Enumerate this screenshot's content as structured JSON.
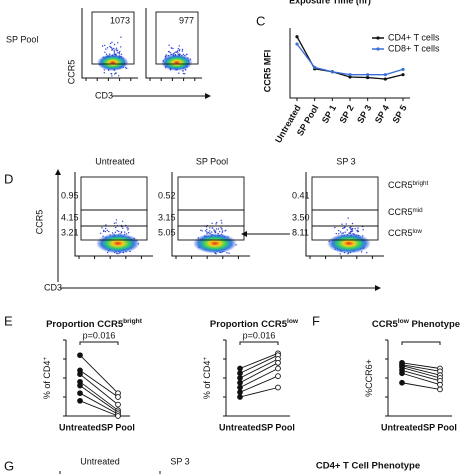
{
  "figure": {
    "exposure_label": "Exposure Time (hr)",
    "panel_letters": {
      "c": "C",
      "d": "D",
      "e": "E",
      "f": "F",
      "g": "G"
    },
    "top_flow": {
      "row_label": "SP Pool",
      "ylabel": "CCR5",
      "xlabel": "CD3",
      "gates": [
        "1073",
        "977"
      ]
    },
    "d_flow": {
      "titles": [
        "Untreated",
        "SP Pool",
        "SP 3"
      ],
      "ylabel": "CCR5",
      "xlabel": "CD3",
      "gates": [
        [
          "0.95",
          "4.15",
          "3.21"
        ],
        [
          "0.52",
          "3.15",
          "5.05"
        ],
        [
          "0.41",
          "3.50",
          "8.11"
        ]
      ],
      "gate_labels": [
        {
          "base": "CCR5",
          "sup": "bright"
        },
        {
          "base": "CCR5",
          "sup": "mid"
        },
        {
          "base": "CCR5",
          "sup": "low"
        }
      ]
    },
    "g_row": {
      "titles": [
        "Untreated",
        "SP 3"
      ],
      "phenotype_title": "CD4+ T Cell Phenotype"
    }
  },
  "chart_data": [
    {
      "type": "line",
      "ylabel": "CCR5 MFI",
      "categories": [
        "Untreated",
        "SP Pool",
        "SP 1",
        "SP 2",
        "SP 3",
        "SP 4",
        "SP 5"
      ],
      "series": [
        {
          "name": "CD4+ T cells",
          "color": "#111111",
          "values": [
            2100,
            1000,
            900,
            720,
            700,
            650,
            800
          ]
        },
        {
          "name": "CD8+ T cells",
          "color": "#3a6fd8",
          "values": [
            1850,
            1050,
            900,
            800,
            800,
            800,
            980
          ]
        }
      ],
      "ylim": [
        0,
        2400
      ],
      "legend": "top-right"
    },
    {
      "type": "paired",
      "title": {
        "base": "Proportion CCR5",
        "sup": "bright"
      },
      "ylabel": {
        "base": "% of CD4",
        "sup": "+"
      },
      "categories": [
        "Untreated",
        "SP Pool"
      ],
      "annotation": "p=0.016",
      "pairs": [
        [
          1.6,
          0.6
        ],
        [
          1.2,
          0.5
        ],
        [
          1.1,
          0.3
        ],
        [
          0.9,
          0.15
        ],
        [
          0.8,
          0.1
        ],
        [
          0.6,
          0.05
        ],
        [
          0.4,
          0.0
        ]
      ],
      "markers": [
        "filled",
        "open"
      ],
      "ylim": [
        0,
        2
      ]
    },
    {
      "type": "paired",
      "title": {
        "base": "Proportion CCR5",
        "sup": "low"
      },
      "ylabel": {
        "base": "% of CD4",
        "sup": "+"
      },
      "categories": [
        "Untreated",
        "SP Pool"
      ],
      "annotation": "p=0.016",
      "pairs": [
        [
          5.0,
          6.6
        ],
        [
          4.5,
          6.4
        ],
        [
          4.0,
          6.0
        ],
        [
          3.5,
          5.6
        ],
        [
          3.0,
          5.0
        ],
        [
          2.5,
          4.2
        ],
        [
          2.0,
          3.0
        ]
      ],
      "markers": [
        "filled",
        "open"
      ],
      "ylim": [
        0,
        8
      ]
    },
    {
      "type": "paired",
      "title": {
        "base": "CCR5",
        "sup": "low",
        "rest": " Phenotype"
      },
      "ylabel": {
        "base": "%CCR6+"
      },
      "categories": [
        "Untreated",
        "SP Pool"
      ],
      "pairs": [
        [
          56,
          50
        ],
        [
          54,
          47
        ],
        [
          53,
          43
        ],
        [
          51,
          40
        ],
        [
          48,
          37
        ],
        [
          45,
          33
        ],
        [
          35,
          28
        ]
      ],
      "markers": [
        "filled",
        "open"
      ],
      "ylim": [
        0,
        80
      ]
    }
  ]
}
